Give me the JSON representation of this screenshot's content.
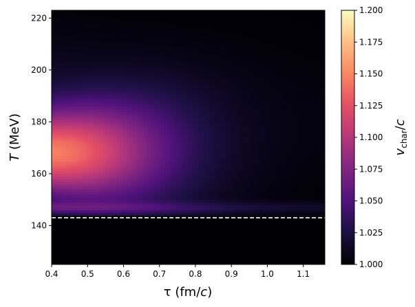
{
  "chart_data": {
    "type": "heatmap",
    "title": "",
    "xlabel": {
      "main": "τ (fm/",
      "italic": "c",
      "close": ")"
    },
    "ylabel": {
      "italic": "T",
      "rest": " (MeV)"
    },
    "colorbar_label": {
      "italic": "v",
      "sub": "char",
      "slash": "/",
      "italic2": "c"
    },
    "xlim": [
      0.4,
      1.16
    ],
    "ylim": [
      125,
      223
    ],
    "x_ticks": [
      "0.4",
      "0.5",
      "0.6",
      "0.7",
      "0.8",
      "0.9",
      "1.0",
      "1.1"
    ],
    "y_ticks": [
      "140",
      "160",
      "180",
      "200",
      "220"
    ],
    "colorbar": {
      "range": [
        1.0,
        1.2
      ],
      "ticks": [
        "1.000",
        "1.025",
        "1.050",
        "1.075",
        "1.100",
        "1.125",
        "1.150",
        "1.175",
        "1.200"
      ],
      "colormap": "magma"
    },
    "reference_line": {
      "y": 143,
      "style": "dashed",
      "color": "#ffffff"
    },
    "field_summary": {
      "peak_value": 1.13,
      "peak_at": {
        "x": 0.4,
        "y": 168
      },
      "below_reference_value": 1.0
    }
  }
}
